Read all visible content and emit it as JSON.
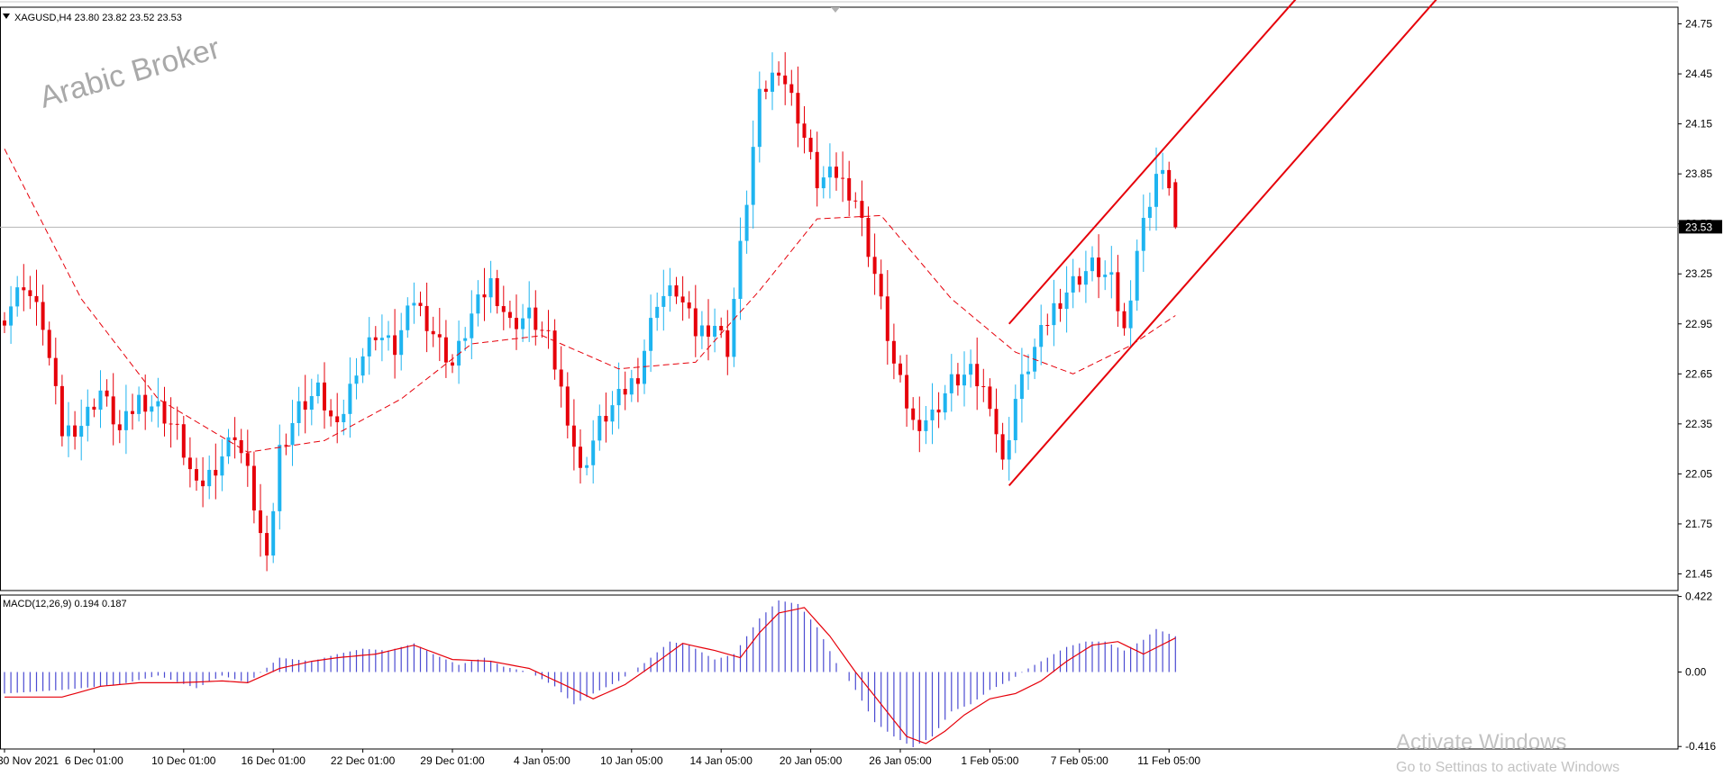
{
  "header": {
    "symbol_line": "XAGUSD,H4  23.80 23.82 23.52 23.53",
    "dropdown_icon": "triangle-down-icon"
  },
  "watermark": "Arabic Broker",
  "os_overlay": {
    "title": "Activate Windows",
    "subtitle": "Go to Settings to activate Windows"
  },
  "colors": {
    "bull": "#1eb4f0",
    "bear": "#e6000a",
    "ma": "#e6000a",
    "channel": "#e6000a",
    "macd_hist": "#4b4bd2",
    "macd_signal": "#e6000a",
    "price_badge_bg": "#000000",
    "price_badge_fg": "#ffffff",
    "grid_line": "#b4b4b4"
  },
  "chart_data": [
    {
      "type": "candlestick",
      "symbol": "XAGUSD",
      "timeframe": "H4",
      "ohlc_header": {
        "open": 23.8,
        "high": 23.82,
        "low": 23.52,
        "close": 23.53
      },
      "current_price_label": "23.53",
      "y_ticks": [
        "24.75",
        "24.45",
        "24.15",
        "23.85",
        "23.55",
        "23.25",
        "22.95",
        "22.65",
        "22.35",
        "22.05",
        "21.75",
        "21.45"
      ],
      "ylim": [
        21.35,
        24.85
      ],
      "x_ticks": [
        "30 Nov 2021",
        "6 Dec 01:00",
        "10 Dec 01:00",
        "16 Dec 01:00",
        "22 Dec 01:00",
        "29 Dec 01:00",
        "4 Jan 05:00",
        "10 Jan 05:00",
        "14 Jan 05:00",
        "20 Jan 05:00",
        "26 Jan 05:00",
        "1 Feb 05:00",
        "7 Feb 05:00",
        "11 Feb 05:00"
      ],
      "close_path_anchors": [
        [
          0,
          23.0
        ],
        [
          3,
          23.2
        ],
        [
          6,
          22.95
        ],
        [
          9,
          22.3
        ],
        [
          12,
          22.35
        ],
        [
          15,
          22.55
        ],
        [
          18,
          22.3
        ],
        [
          21,
          22.5
        ],
        [
          24,
          22.45
        ],
        [
          27,
          22.3
        ],
        [
          30,
          21.95
        ],
        [
          33,
          22.1
        ],
        [
          36,
          22.3
        ],
        [
          38,
          22.05
        ],
        [
          41,
          21.5
        ],
        [
          43,
          22.2
        ],
        [
          46,
          22.45
        ],
        [
          49,
          22.55
        ],
        [
          52,
          22.3
        ],
        [
          55,
          22.7
        ],
        [
          58,
          22.9
        ],
        [
          61,
          22.8
        ],
        [
          64,
          23.1
        ],
        [
          67,
          22.9
        ],
        [
          70,
          22.7
        ],
        [
          73,
          23.0
        ],
        [
          76,
          23.2
        ],
        [
          79,
          22.95
        ],
        [
          82,
          23.0
        ],
        [
          85,
          22.85
        ],
        [
          88,
          22.4
        ],
        [
          90,
          22.05
        ],
        [
          93,
          22.35
        ],
        [
          96,
          22.5
        ],
        [
          99,
          22.65
        ],
        [
          102,
          23.1
        ],
        [
          105,
          23.15
        ],
        [
          108,
          22.9
        ],
        [
          111,
          22.95
        ],
        [
          113,
          22.8
        ],
        [
          115,
          23.4
        ],
        [
          118,
          24.3
        ],
        [
          121,
          24.5
        ],
        [
          124,
          24.2
        ],
        [
          127,
          23.8
        ],
        [
          130,
          23.85
        ],
        [
          133,
          23.7
        ],
        [
          136,
          23.25
        ],
        [
          139,
          22.7
        ],
        [
          142,
          22.35
        ],
        [
          145,
          22.4
        ],
        [
          148,
          22.6
        ],
        [
          151,
          22.65
        ],
        [
          154,
          22.5
        ],
        [
          156,
          22.1
        ],
        [
          158,
          22.5
        ],
        [
          161,
          22.8
        ],
        [
          164,
          23.05
        ],
        [
          167,
          23.2
        ],
        [
          170,
          23.3
        ],
        [
          173,
          23.2
        ],
        [
          175,
          22.9
        ],
        [
          177,
          23.4
        ],
        [
          180,
          23.85
        ],
        [
          182,
          23.8
        ],
        [
          183,
          23.53
        ]
      ],
      "moving_average_anchors": [
        [
          0,
          24.0
        ],
        [
          12,
          23.1
        ],
        [
          24,
          22.5
        ],
        [
          38,
          22.18
        ],
        [
          50,
          22.25
        ],
        [
          62,
          22.5
        ],
        [
          73,
          22.83
        ],
        [
          84,
          22.88
        ],
        [
          96,
          22.68
        ],
        [
          108,
          22.72
        ],
        [
          118,
          23.15
        ],
        [
          127,
          23.58
        ],
        [
          137,
          23.6
        ],
        [
          148,
          23.1
        ],
        [
          158,
          22.78
        ],
        [
          167,
          22.65
        ],
        [
          176,
          22.82
        ],
        [
          183,
          23.0
        ]
      ],
      "channel": {
        "upper": {
          "from": [
            157,
            22.95
          ],
          "to": [
            203,
            24.95
          ]
        },
        "lower": {
          "from": [
            157,
            21.98
          ],
          "to": [
            225,
            24.95
          ]
        }
      }
    },
    {
      "type": "bar",
      "name": "MACD(12,26,9) 0.194 0.187",
      "y_ticks": [
        "0.422",
        "0.00",
        "-0.416"
      ],
      "ylim": [
        -0.43,
        0.43
      ],
      "histogram_anchors": [
        [
          0,
          -0.12
        ],
        [
          9,
          -0.1
        ],
        [
          18,
          -0.07
        ],
        [
          24,
          -0.02
        ],
        [
          30,
          -0.09
        ],
        [
          34,
          -0.02
        ],
        [
          38,
          -0.06
        ],
        [
          43,
          0.08
        ],
        [
          48,
          0.06
        ],
        [
          52,
          0.1
        ],
        [
          56,
          0.13
        ],
        [
          60,
          0.12
        ],
        [
          64,
          0.16
        ],
        [
          67,
          0.1
        ],
        [
          71,
          0.04
        ],
        [
          75,
          0.08
        ],
        [
          78,
          0.03
        ],
        [
          82,
          0.0
        ],
        [
          86,
          -0.08
        ],
        [
          89,
          -0.18
        ],
        [
          92,
          -0.12
        ],
        [
          96,
          -0.05
        ],
        [
          100,
          0.05
        ],
        [
          104,
          0.17
        ],
        [
          107,
          0.15
        ],
        [
          111,
          0.07
        ],
        [
          114,
          0.1
        ],
        [
          118,
          0.3
        ],
        [
          121,
          0.4
        ],
        [
          124,
          0.38
        ],
        [
          127,
          0.25
        ],
        [
          130,
          0.05
        ],
        [
          133,
          -0.1
        ],
        [
          136,
          -0.28
        ],
        [
          139,
          -0.36
        ],
        [
          142,
          -0.42
        ],
        [
          145,
          -0.36
        ],
        [
          148,
          -0.22
        ],
        [
          151,
          -0.18
        ],
        [
          154,
          -0.1
        ],
        [
          157,
          -0.05
        ],
        [
          160,
          0.02
        ],
        [
          163,
          0.08
        ],
        [
          166,
          0.14
        ],
        [
          169,
          0.17
        ],
        [
          172,
          0.17
        ],
        [
          175,
          0.12
        ],
        [
          178,
          0.18
        ],
        [
          180,
          0.24
        ],
        [
          183,
          0.2
        ]
      ],
      "signal_anchors": [
        [
          0,
          -0.14
        ],
        [
          9,
          -0.14
        ],
        [
          15,
          -0.08
        ],
        [
          21,
          -0.06
        ],
        [
          27,
          -0.06
        ],
        [
          34,
          -0.05
        ],
        [
          38,
          -0.06
        ],
        [
          43,
          0.02
        ],
        [
          48,
          0.06
        ],
        [
          52,
          0.08
        ],
        [
          58,
          0.1
        ],
        [
          64,
          0.15
        ],
        [
          70,
          0.07
        ],
        [
          76,
          0.06
        ],
        [
          82,
          0.02
        ],
        [
          88,
          -0.08
        ],
        [
          92,
          -0.15
        ],
        [
          97,
          -0.07
        ],
        [
          101,
          0.03
        ],
        [
          106,
          0.16
        ],
        [
          111,
          0.12
        ],
        [
          115,
          0.08
        ],
        [
          118,
          0.22
        ],
        [
          121,
          0.33
        ],
        [
          125,
          0.36
        ],
        [
          129,
          0.2
        ],
        [
          133,
          0.0
        ],
        [
          137,
          -0.18
        ],
        [
          141,
          -0.36
        ],
        [
          144,
          -0.4
        ],
        [
          147,
          -0.33
        ],
        [
          150,
          -0.24
        ],
        [
          154,
          -0.15
        ],
        [
          158,
          -0.12
        ],
        [
          162,
          -0.05
        ],
        [
          166,
          0.06
        ],
        [
          170,
          0.15
        ],
        [
          174,
          0.17
        ],
        [
          178,
          0.1
        ],
        [
          183,
          0.19
        ]
      ]
    }
  ]
}
